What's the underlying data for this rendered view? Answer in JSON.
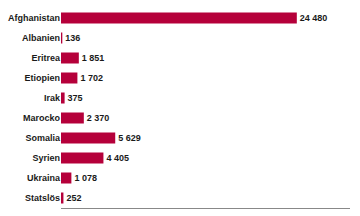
{
  "chart_data": {
    "type": "bar",
    "orientation": "horizontal",
    "categories": [
      "Afghanistan",
      "Albanien",
      "Eritrea",
      "Etiopien",
      "Irak",
      "Marocko",
      "Somalia",
      "Syrien",
      "Ukraina",
      "Statslös"
    ],
    "values": [
      24480,
      136,
      1851,
      1702,
      375,
      2370,
      5629,
      4405,
      1078,
      252
    ],
    "value_labels": [
      "24 480",
      "136",
      "1 851",
      "1 702",
      "375",
      "2 370",
      "5 629",
      "4 405",
      "1 078",
      "252"
    ],
    "data_labels": true,
    "color": "#b5003a",
    "xlim": [
      0,
      30000
    ],
    "grid": false,
    "tick_labels": "y"
  }
}
